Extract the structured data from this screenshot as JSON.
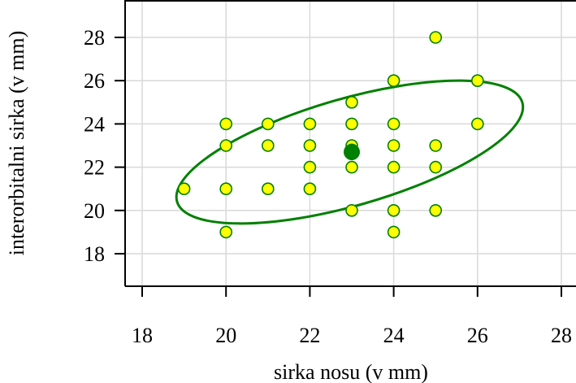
{
  "chart_data": {
    "type": "scatter",
    "title": "",
    "xlabel": "sirka nosu (v mm)",
    "ylabel": "interorbitalni sirka (v mm)",
    "xlim": [
      17.6,
      28.3
    ],
    "ylim": [
      16.4,
      29.6
    ],
    "x_ticks": [
      18,
      20,
      22,
      24,
      26,
      28
    ],
    "y_ticks": [
      18,
      20,
      22,
      24,
      26,
      28
    ],
    "grid": true,
    "colors": {
      "point_fill": "#ffff00",
      "point_stroke": "#008000",
      "centroid": "#008000",
      "ellipse": "#008000",
      "grid": "#d9d9d9"
    },
    "points": [
      {
        "x": 19,
        "y": 21
      },
      {
        "x": 20,
        "y": 24
      },
      {
        "x": 20,
        "y": 23
      },
      {
        "x": 20,
        "y": 21
      },
      {
        "x": 20,
        "y": 19
      },
      {
        "x": 21,
        "y": 24
      },
      {
        "x": 21,
        "y": 23
      },
      {
        "x": 21,
        "y": 21
      },
      {
        "x": 22,
        "y": 24
      },
      {
        "x": 22,
        "y": 23
      },
      {
        "x": 22,
        "y": 22
      },
      {
        "x": 22,
        "y": 21
      },
      {
        "x": 23,
        "y": 25
      },
      {
        "x": 23,
        "y": 24
      },
      {
        "x": 23,
        "y": 23
      },
      {
        "x": 23,
        "y": 22.8
      },
      {
        "x": 23,
        "y": 22
      },
      {
        "x": 23,
        "y": 20
      },
      {
        "x": 24,
        "y": 26
      },
      {
        "x": 24,
        "y": 24
      },
      {
        "x": 24,
        "y": 23
      },
      {
        "x": 24,
        "y": 22
      },
      {
        "x": 24,
        "y": 20
      },
      {
        "x": 24,
        "y": 19
      },
      {
        "x": 25,
        "y": 28
      },
      {
        "x": 25,
        "y": 23
      },
      {
        "x": 25,
        "y": 22
      },
      {
        "x": 25,
        "y": 20
      },
      {
        "x": 26,
        "y": 26
      },
      {
        "x": 26,
        "y": 24
      }
    ],
    "centroid": {
      "x": 23,
      "y": 22.7
    },
    "ellipse": {
      "cx": 22.95,
      "cy": 22.7,
      "rx": 4.2,
      "ry": 5.05,
      "angle_deg": -16
    }
  }
}
